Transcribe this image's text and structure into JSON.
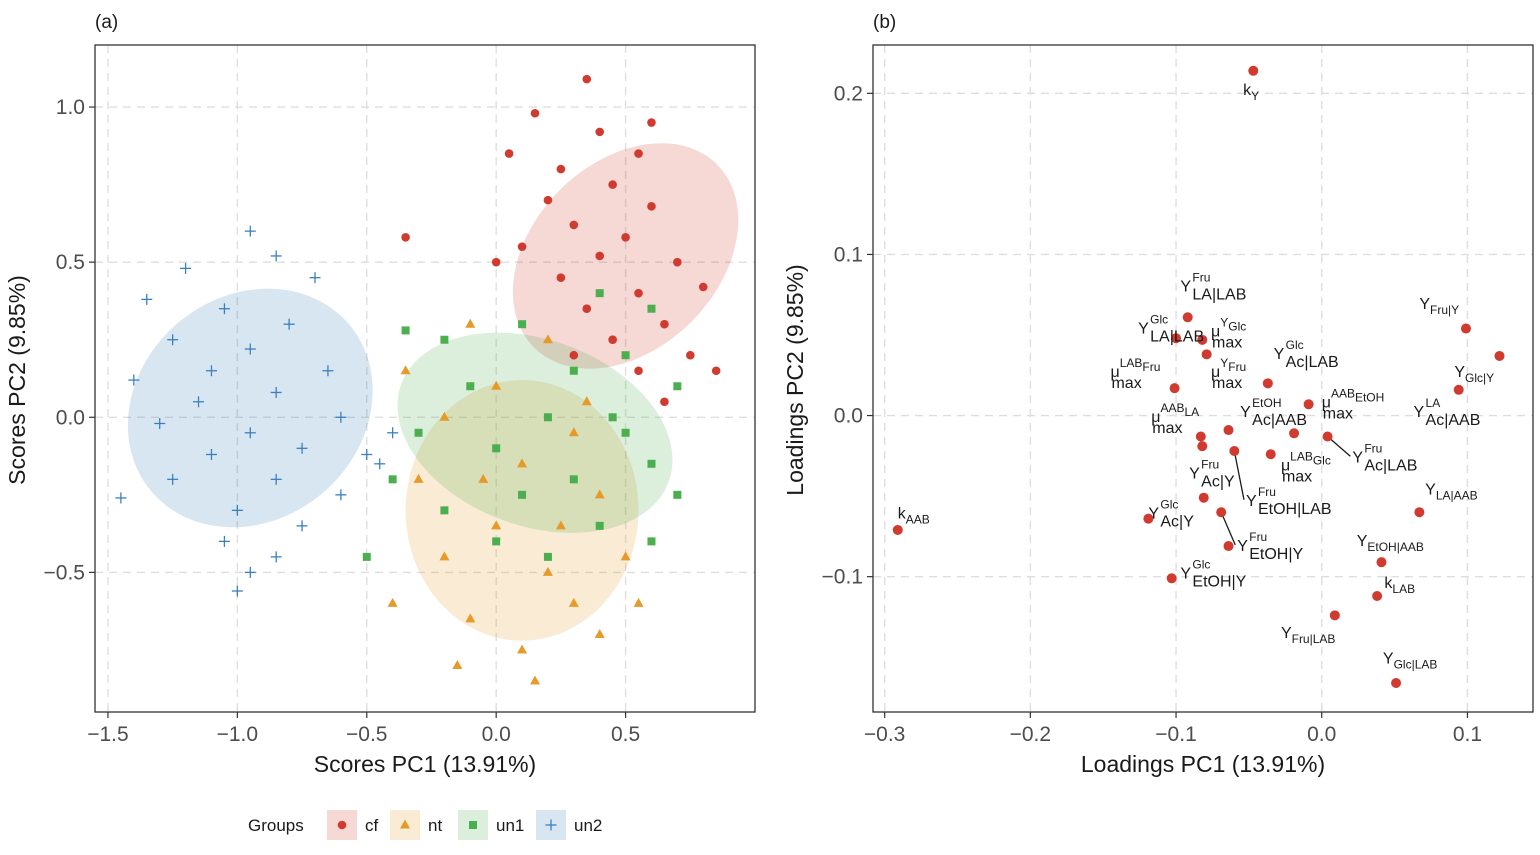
{
  "chart_data": [
    {
      "panel": "(a)",
      "type": "scatter",
      "xlabel": "Scores PC1 (13.91%)",
      "ylabel": "Scores PC2 (9.85%)",
      "xlim": [
        -1.55,
        1.0
      ],
      "ylim": [
        -0.95,
        1.2
      ],
      "xticks": [
        -1.5,
        -1.0,
        -0.5,
        0.0,
        0.5
      ],
      "xtick_labels": [
        "−1.5",
        "−1.0",
        "−0.5",
        "0.0",
        "0.5"
      ],
      "yticks": [
        -0.5,
        0.0,
        0.5,
        1.0
      ],
      "ytick_labels": [
        "−0.5",
        "0.0",
        "0.5",
        "1.0"
      ],
      "grid": true,
      "legend": {
        "title": "Groups",
        "position": "bottom"
      },
      "series": [
        {
          "name": "cf",
          "color": "#D03A2F",
          "marker": "circle",
          "ellipse": {
            "cx": 0.5,
            "cy": 0.52,
            "rx": 0.5,
            "ry": 0.3,
            "angle_deg": -45
          },
          "points": [
            [
              0.35,
              1.09
            ],
            [
              0.15,
              0.98
            ],
            [
              0.4,
              0.92
            ],
            [
              0.55,
              0.85
            ],
            [
              0.05,
              0.85
            ],
            [
              0.25,
              0.8
            ],
            [
              0.45,
              0.75
            ],
            [
              0.2,
              0.7
            ],
            [
              0.6,
              0.68
            ],
            [
              0.3,
              0.62
            ],
            [
              0.5,
              0.58
            ],
            [
              0.1,
              0.55
            ],
            [
              0.4,
              0.52
            ],
            [
              0.7,
              0.5
            ],
            [
              0.25,
              0.45
            ],
            [
              0.55,
              0.4
            ],
            [
              0.8,
              0.42
            ],
            [
              0.35,
              0.35
            ],
            [
              0.65,
              0.3
            ],
            [
              0.45,
              0.25
            ],
            [
              0.75,
              0.2
            ],
            [
              0.85,
              0.15
            ],
            [
              0.55,
              0.15
            ],
            [
              0.65,
              0.05
            ],
            [
              -0.35,
              0.58
            ],
            [
              0.0,
              0.5
            ],
            [
              0.6,
              0.95
            ],
            [
              0.3,
              0.2
            ]
          ]
        },
        {
          "name": "nt",
          "color": "#E69A28",
          "marker": "triangle",
          "ellipse": {
            "cx": 0.1,
            "cy": -0.3,
            "rx": 0.45,
            "ry": 0.42,
            "angle_deg": 0
          },
          "points": [
            [
              -0.1,
              0.3
            ],
            [
              0.2,
              0.25
            ],
            [
              0.0,
              0.1
            ],
            [
              -0.2,
              0.0
            ],
            [
              0.3,
              -0.05
            ],
            [
              0.1,
              -0.15
            ],
            [
              -0.3,
              -0.2
            ],
            [
              0.4,
              -0.25
            ],
            [
              0.0,
              -0.35
            ],
            [
              -0.2,
              -0.45
            ],
            [
              0.2,
              -0.5
            ],
            [
              0.5,
              -0.45
            ],
            [
              -0.1,
              -0.65
            ],
            [
              0.3,
              -0.6
            ],
            [
              0.1,
              -0.75
            ],
            [
              -0.15,
              -0.8
            ],
            [
              0.4,
              -0.7
            ],
            [
              -0.4,
              -0.6
            ],
            [
              0.15,
              -0.85
            ],
            [
              0.55,
              -0.6
            ],
            [
              -0.35,
              0.15
            ],
            [
              0.25,
              -0.35
            ],
            [
              -0.05,
              -0.2
            ],
            [
              0.35,
              0.05
            ]
          ]
        },
        {
          "name": "un1",
          "color": "#4CAF4F",
          "marker": "square",
          "ellipse": {
            "cx": 0.15,
            "cy": -0.05,
            "rx": 0.55,
            "ry": 0.3,
            "angle_deg": 20
          },
          "points": [
            [
              0.4,
              0.4
            ],
            [
              0.6,
              0.35
            ],
            [
              0.1,
              0.3
            ],
            [
              -0.2,
              0.25
            ],
            [
              0.5,
              0.2
            ],
            [
              0.3,
              0.15
            ],
            [
              -0.1,
              0.1
            ],
            [
              0.7,
              0.1
            ],
            [
              0.2,
              0.0
            ],
            [
              0.5,
              -0.05
            ],
            [
              -0.3,
              -0.05
            ],
            [
              0.0,
              -0.1
            ],
            [
              0.6,
              -0.15
            ],
            [
              0.3,
              -0.2
            ],
            [
              -0.4,
              -0.2
            ],
            [
              0.1,
              -0.25
            ],
            [
              0.7,
              -0.25
            ],
            [
              -0.2,
              -0.3
            ],
            [
              0.4,
              -0.35
            ],
            [
              0.0,
              -0.4
            ],
            [
              -0.5,
              -0.45
            ],
            [
              0.6,
              -0.4
            ],
            [
              0.2,
              -0.45
            ],
            [
              -0.35,
              0.28
            ],
            [
              0.45,
              0.0
            ]
          ]
        },
        {
          "name": "un2",
          "color": "#3A80C0",
          "marker": "plus",
          "ellipse": {
            "cx": -0.95,
            "cy": 0.03,
            "rx": 0.5,
            "ry": 0.36,
            "angle_deg": -40
          },
          "points": [
            [
              -0.95,
              0.6
            ],
            [
              -0.85,
              0.52
            ],
            [
              -1.2,
              0.48
            ],
            [
              -0.7,
              0.45
            ],
            [
              -1.35,
              0.38
            ],
            [
              -1.05,
              0.35
            ],
            [
              -0.8,
              0.3
            ],
            [
              -1.25,
              0.25
            ],
            [
              -0.95,
              0.22
            ],
            [
              -1.1,
              0.15
            ],
            [
              -0.65,
              0.15
            ],
            [
              -1.4,
              0.12
            ],
            [
              -0.85,
              0.08
            ],
            [
              -1.15,
              0.05
            ],
            [
              -0.6,
              0.0
            ],
            [
              -1.3,
              -0.02
            ],
            [
              -0.95,
              -0.05
            ],
            [
              -0.75,
              -0.1
            ],
            [
              -1.1,
              -0.12
            ],
            [
              -0.5,
              -0.12
            ],
            [
              -1.25,
              -0.2
            ],
            [
              -0.85,
              -0.2
            ],
            [
              -0.6,
              -0.25
            ],
            [
              -1.0,
              -0.3
            ],
            [
              -1.45,
              -0.26
            ],
            [
              -0.75,
              -0.35
            ],
            [
              -1.05,
              -0.4
            ],
            [
              -0.85,
              -0.45
            ],
            [
              -0.95,
              -0.5
            ],
            [
              -1.0,
              -0.56
            ],
            [
              -0.4,
              -0.05
            ],
            [
              -0.45,
              -0.15
            ]
          ]
        }
      ]
    },
    {
      "panel": "(b)",
      "type": "scatter",
      "xlabel": "Loadings PC1 (13.91%)",
      "ylabel": "Loadings PC2 (9.85%)",
      "xlim": [
        -0.308,
        0.145
      ],
      "ylim": [
        -0.184,
        0.23
      ],
      "xticks": [
        -0.3,
        -0.2,
        -0.1,
        0.0,
        0.1
      ],
      "xtick_labels": [
        "−0.3",
        "−0.2",
        "−0.1",
        "0.0",
        "0.1"
      ],
      "yticks": [
        -0.1,
        0.0,
        0.1,
        0.2
      ],
      "ytick_labels": [
        "−0.1",
        "0.0",
        "0.1",
        "0.2"
      ],
      "grid": true,
      "color": "#D03A2F",
      "points": [
        {
          "x": -0.047,
          "y": 0.214,
          "label": {
            "base": "k",
            "sub": "Y"
          },
          "lx": -0.054,
          "ly": 0.199,
          "lead": false
        },
        {
          "x": -0.291,
          "y": -0.071,
          "label": {
            "base": "k",
            "sub": "AAB"
          },
          "lx": -0.291,
          "ly": -0.064,
          "lead": false
        },
        {
          "x": -0.092,
          "y": 0.061,
          "label": {
            "base": "Y",
            "sup": "Fru",
            "sub": "LA|LAB"
          },
          "lx": -0.097,
          "ly": 0.077,
          "lead": false
        },
        {
          "x": -0.1,
          "y": 0.048,
          "label": {
            "base": "Y",
            "sup": "Glc",
            "sub": "LA|LAB"
          },
          "lx": -0.126,
          "ly": 0.051,
          "lead": false
        },
        {
          "x": -0.082,
          "y": 0.047,
          "label": {
            "base": "μ",
            "sup": "Glc",
            "supfirst": "Y",
            "sub": "max"
          },
          "lx": -0.076,
          "ly": 0.049,
          "lead": false
        },
        {
          "x": -0.079,
          "y": 0.038,
          "label": {
            "base": "μ",
            "sup": "Fru",
            "supfirst": "Y",
            "sub": "max"
          },
          "lx": -0.076,
          "ly": 0.024,
          "lead": false
        },
        {
          "x": -0.101,
          "y": 0.017,
          "label": {
            "base": "μ",
            "sup": "Fru",
            "supfirst": "LAB",
            "sub": "max"
          },
          "lx": -0.145,
          "ly": 0.024,
          "lead": false
        },
        {
          "x": -0.037,
          "y": 0.02,
          "label": {
            "base": "Y",
            "sup": "Glc",
            "sub": "Ac|LAB"
          },
          "lx": -0.033,
          "ly": 0.035,
          "lead": false
        },
        {
          "x": -0.009,
          "y": 0.007,
          "label": {
            "base": "μ",
            "sup": "EtOH",
            "supfirst": "AAB",
            "sub": "max"
          },
          "lx": 0.0,
          "ly": 0.005,
          "lead": false
        },
        {
          "x": -0.064,
          "y": -0.009,
          "label": {
            "base": "Y",
            "sup": "EtOH",
            "sub": "Ac|AAB"
          },
          "lx": -0.056,
          "ly": -0.001,
          "lead": false
        },
        {
          "x": -0.083,
          "y": -0.013,
          "label": {
            "base": "μ",
            "sup": "LA",
            "supfirst": "AAB",
            "sub": "max"
          },
          "lx": -0.117,
          "ly": -0.004,
          "lead": false
        },
        {
          "x": -0.082,
          "y": -0.019,
          "label": null,
          "lx": 0,
          "ly": 0,
          "lead": false
        },
        {
          "x": -0.019,
          "y": -0.011,
          "label": null,
          "lx": 0,
          "ly": 0,
          "lead": false
        },
        {
          "x": 0.004,
          "y": -0.013,
          "label": {
            "base": "Y",
            "sup": "Fru",
            "sub": "Ac|LAB"
          },
          "lx": 0.021,
          "ly": -0.029,
          "lead": true
        },
        {
          "x": -0.035,
          "y": -0.024,
          "label": {
            "base": "μ",
            "sup": "Glc",
            "supfirst": "LAB",
            "sub": "max"
          },
          "lx": -0.028,
          "ly": -0.034,
          "lead": false
        },
        {
          "x": -0.06,
          "y": -0.022,
          "label": {
            "base": "Y",
            "sup": "Fru",
            "sub": "EtOH|LAB"
          },
          "lx": -0.052,
          "ly": -0.056,
          "lead": true
        },
        {
          "x": -0.081,
          "y": -0.051,
          "label": {
            "base": "Y",
            "sup": "Fru",
            "sub": "Ac|Y"
          },
          "lx": -0.091,
          "ly": -0.039,
          "lead": false
        },
        {
          "x": -0.069,
          "y": -0.06,
          "label": {
            "base": "Y",
            "sup": "Fru",
            "sub": "EtOH|Y"
          },
          "lx": -0.058,
          "ly": -0.084,
          "lead": true
        },
        {
          "x": -0.064,
          "y": -0.081,
          "label": null,
          "lx": 0,
          "ly": 0,
          "lead": false
        },
        {
          "x": -0.119,
          "y": -0.064,
          "label": {
            "base": "Y",
            "sup": "Glc",
            "sub": "Ac|Y"
          },
          "lx": -0.119,
          "ly": -0.064,
          "lead": false
        },
        {
          "x": -0.103,
          "y": -0.101,
          "label": {
            "base": "Y",
            "sup": "Glc",
            "sub": "EtOH|Y"
          },
          "lx": -0.097,
          "ly": -0.101,
          "lead": false
        },
        {
          "x": 0.099,
          "y": 0.054,
          "label": {
            "base": "Y",
            "sub": "Fru|Y"
          },
          "lx": 0.067,
          "ly": 0.066,
          "lead": false
        },
        {
          "x": 0.122,
          "y": 0.037,
          "label": {
            "base": "Y",
            "sub": "Glc|Y"
          },
          "lx": 0.091,
          "ly": 0.024,
          "lead": false
        },
        {
          "x": 0.094,
          "y": 0.016,
          "label": {
            "base": "Y",
            "sup": "LA",
            "sub": "Ac|AAB"
          },
          "lx": 0.063,
          "ly": -0.001,
          "lead": false
        },
        {
          "x": 0.067,
          "y": -0.06,
          "label": {
            "base": "Y",
            "sub": "LA|AAB"
          },
          "lx": 0.071,
          "ly": -0.049,
          "lead": false
        },
        {
          "x": 0.041,
          "y": -0.091,
          "label": {
            "base": "Y",
            "sub": "EtOH|AAB"
          },
          "lx": 0.024,
          "ly": -0.081,
          "lead": false
        },
        {
          "x": 0.038,
          "y": -0.112,
          "label": {
            "base": "k",
            "sub": "LAB"
          },
          "lx": 0.043,
          "ly": -0.107,
          "lead": false
        },
        {
          "x": 0.009,
          "y": -0.124,
          "label": {
            "base": "Y",
            "sub": "Fru|LAB"
          },
          "lx": -0.028,
          "ly": -0.138,
          "lead": false
        },
        {
          "x": 0.051,
          "y": -0.166,
          "label": {
            "base": "Y",
            "sub": "Glc|LAB"
          },
          "lx": 0.042,
          "ly": -0.154,
          "lead": false
        }
      ]
    }
  ]
}
